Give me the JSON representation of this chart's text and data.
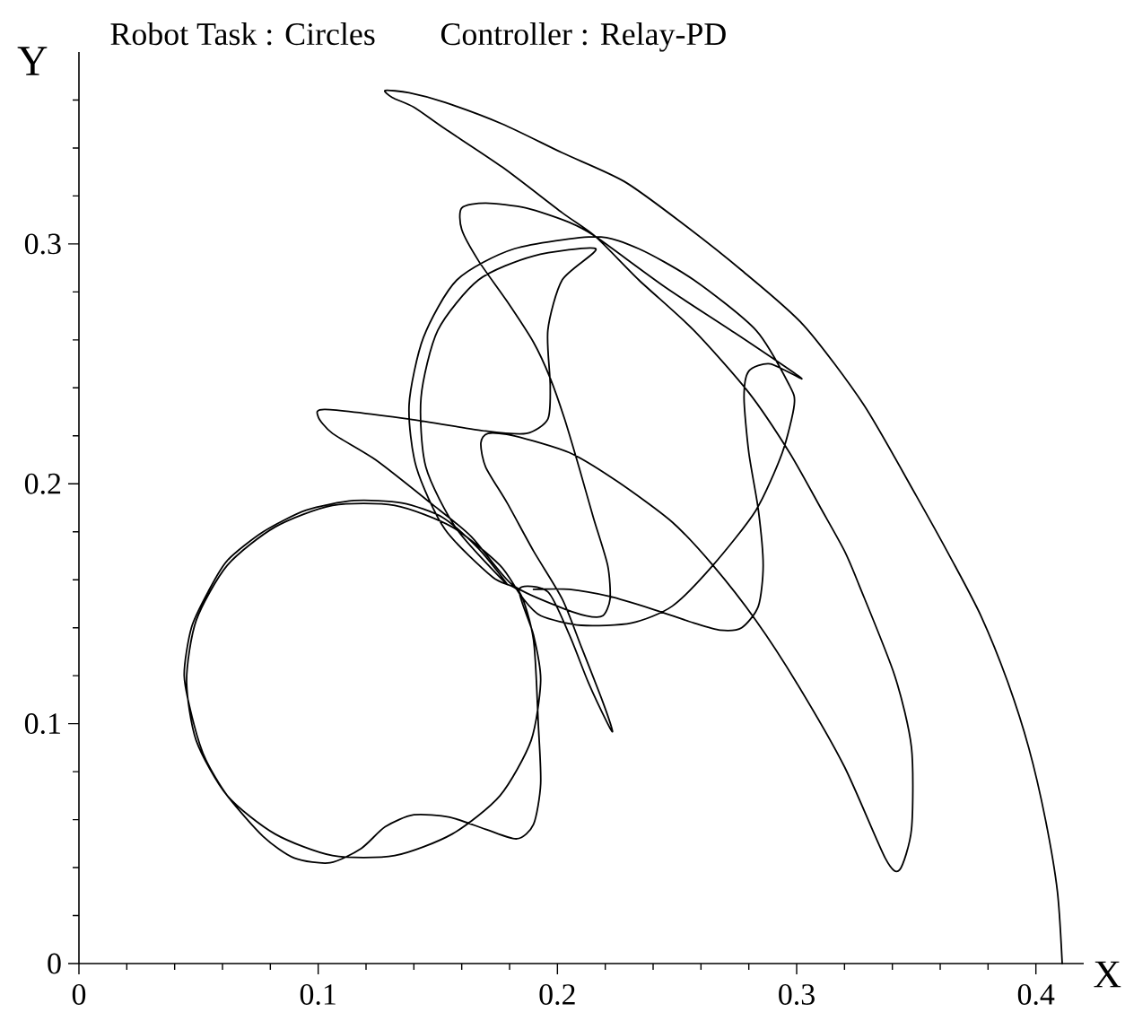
{
  "chart_data": {
    "type": "line",
    "title": "Robot Task : Circles",
    "subtitle": "Controller : Relay-PD",
    "xlabel": "X",
    "ylabel": "Y",
    "xlim": [
      0,
      0.42
    ],
    "ylim": [
      0,
      0.38
    ],
    "xticks": [
      0,
      {
        "value": 0.02,
        "label": null
      },
      {
        "value": 0.04,
        "label": null
      },
      {
        "value": 0.06,
        "label": null
      },
      {
        "value": 0.08,
        "label": null
      },
      0.1,
      {
        "value": 0.12,
        "label": null
      },
      {
        "value": 0.14,
        "label": null
      },
      {
        "value": 0.16,
        "label": null
      },
      {
        "value": 0.18,
        "label": null
      },
      0.2,
      {
        "value": 0.22,
        "label": null
      },
      {
        "value": 0.24,
        "label": null
      },
      {
        "value": 0.26,
        "label": null
      },
      {
        "value": 0.28,
        "label": null
      },
      0.3,
      {
        "value": 0.32,
        "label": null
      },
      {
        "value": 0.34,
        "label": null
      },
      {
        "value": 0.36,
        "label": null
      },
      {
        "value": 0.38,
        "label": null
      },
      0.4
    ],
    "yticks": [
      0,
      {
        "value": 0.02,
        "label": null
      },
      {
        "value": 0.04,
        "label": null
      },
      {
        "value": 0.06,
        "label": null
      },
      {
        "value": 0.08,
        "label": null
      },
      0.1,
      {
        "value": 0.12,
        "label": null
      },
      {
        "value": 0.14,
        "label": null
      },
      {
        "value": 0.16,
        "label": null
      },
      {
        "value": 0.18,
        "label": null
      },
      0.2,
      {
        "value": 0.22,
        "label": null
      },
      {
        "value": 0.24,
        "label": null
      },
      {
        "value": 0.26,
        "label": null
      },
      {
        "value": 0.28,
        "label": null
      },
      0.3,
      {
        "value": 0.32,
        "label": null
      },
      {
        "value": 0.34,
        "label": null
      },
      {
        "value": 0.36,
        "label": null
      }
    ],
    "line_style": "solid",
    "series": [
      {
        "color": "#000000",
        "x": [
          0.411,
          0.409,
          0.404,
          0.397,
          0.388,
          0.377,
          0.365,
          0.35,
          0.328,
          0.303,
          0.277,
          0.253,
          0.228,
          0.202,
          0.177,
          0.153,
          0.138,
          0.128,
          0.131,
          0.14,
          0.153,
          0.177,
          0.202,
          0.216,
          0.234,
          0.257,
          0.28,
          0.297,
          0.31,
          0.32,
          0.326,
          0.341,
          0.348,
          0.348,
          0.343,
          0.337,
          0.32,
          0.3,
          0.283,
          0.265,
          0.248,
          0.225,
          0.205,
          0.182,
          0.171,
          0.168,
          0.17,
          0.179,
          0.19,
          0.202,
          0.21,
          0.219,
          0.223,
          0.221,
          0.213,
          0.205,
          0.196,
          0.184,
          0.19,
          0.193,
          0.189,
          0.176,
          0.156,
          0.132,
          0.106,
          0.082,
          0.062,
          0.049,
          0.045,
          0.049,
          0.062,
          0.082,
          0.106,
          0.132,
          0.156,
          0.176,
          0.185,
          0.193,
          0.21,
          0.231,
          0.248,
          0.265,
          0.283,
          0.294,
          0.299,
          0.297,
          0.283,
          0.257,
          0.234,
          0.216,
          0.182,
          0.158,
          0.144,
          0.138,
          0.141,
          0.153,
          0.173,
          0.184,
          0.19,
          0.192,
          0.193,
          0.19,
          0.183,
          0.17,
          0.155,
          0.14,
          0.128,
          0.118,
          0.105,
          0.09,
          0.077,
          0.062,
          0.053,
          0.048,
          0.044,
          0.047,
          0.054,
          0.062,
          0.077,
          0.095,
          0.115,
          0.135,
          0.152,
          0.167,
          0.179,
          0.158,
          0.145,
          0.143,
          0.15,
          0.167,
          0.19,
          0.216,
          0.202,
          0.196,
          0.197,
          0.196,
          0.187,
          0.17,
          0.138,
          0.103,
          0.1,
          0.106,
          0.124,
          0.147,
          0.164,
          0.181,
          0.2,
          0.212,
          0.219,
          0.222,
          0.221,
          0.215,
          0.209,
          0.203,
          0.197,
          0.19,
          0.179,
          0.167,
          0.16,
          0.16,
          0.17,
          0.187,
          0.205,
          0.216,
          0.245,
          0.274,
          0.302,
          0.289,
          0.28,
          0.278,
          0.28,
          0.284,
          0.286,
          0.284,
          0.277,
          0.268,
          0.257,
          0.239,
          0.222,
          0.205,
          0.19
        ],
        "values": [
          0,
          0.03,
          0.06,
          0.09,
          0.118,
          0.145,
          0.168,
          0.195,
          0.233,
          0.266,
          0.289,
          0.308,
          0.326,
          0.338,
          0.35,
          0.359,
          0.363,
          0.364,
          0.361,
          0.357,
          0.348,
          0.332,
          0.313,
          0.303,
          0.285,
          0.264,
          0.238,
          0.213,
          0.19,
          0.172,
          0.158,
          0.12,
          0.09,
          0.056,
          0.039,
          0.044,
          0.082,
          0.117,
          0.143,
          0.166,
          0.184,
          0.201,
          0.213,
          0.22,
          0.221,
          0.217,
          0.207,
          0.192,
          0.172,
          0.152,
          0.132,
          0.109,
          0.097,
          0.1,
          0.117,
          0.137,
          0.155,
          0.156,
          0.137,
          0.118,
          0.093,
          0.07,
          0.054,
          0.045,
          0.045,
          0.054,
          0.07,
          0.093,
          0.118,
          0.143,
          0.166,
          0.182,
          0.191,
          0.191,
          0.182,
          0.166,
          0.153,
          0.145,
          0.141,
          0.142,
          0.149,
          0.166,
          0.189,
          0.213,
          0.233,
          0.241,
          0.264,
          0.285,
          0.298,
          0.303,
          0.298,
          0.285,
          0.261,
          0.233,
          0.207,
          0.181,
          0.161,
          0.155,
          0.135,
          0.1,
          0.075,
          0.058,
          0.052,
          0.056,
          0.061,
          0.062,
          0.057,
          0.048,
          0.042,
          0.044,
          0.053,
          0.07,
          0.085,
          0.1,
          0.12,
          0.14,
          0.155,
          0.168,
          0.18,
          0.189,
          0.193,
          0.192,
          0.186,
          0.173,
          0.158,
          0.181,
          0.207,
          0.236,
          0.264,
          0.285,
          0.295,
          0.298,
          0.285,
          0.264,
          0.241,
          0.227,
          0.221,
          0.222,
          0.227,
          0.231,
          0.228,
          0.221,
          0.21,
          0.192,
          0.178,
          0.158,
          0.149,
          0.145,
          0.145,
          0.152,
          0.166,
          0.186,
          0.207,
          0.227,
          0.244,
          0.259,
          0.276,
          0.293,
          0.306,
          0.315,
          0.317,
          0.315,
          0.309,
          0.303,
          0.282,
          0.263,
          0.244,
          0.25,
          0.247,
          0.236,
          0.213,
          0.189,
          0.166,
          0.149,
          0.14,
          0.139,
          0.142,
          0.148,
          0.153,
          0.156,
          0.156
        ]
      }
    ]
  }
}
